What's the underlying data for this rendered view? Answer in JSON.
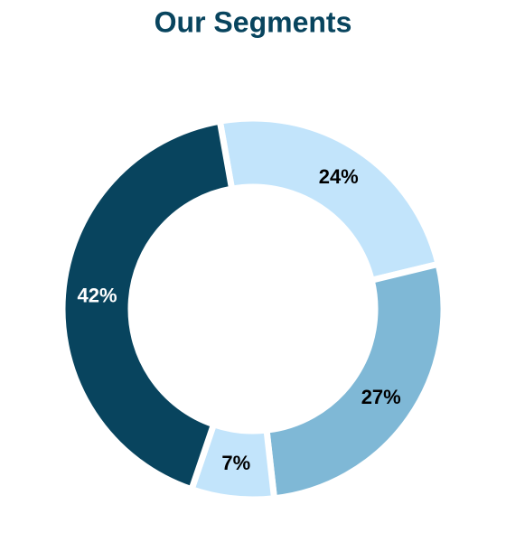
{
  "chart_data": {
    "type": "donut",
    "title": "Our Segments",
    "values": [
      24,
      27,
      7,
      42
    ],
    "value_labels": [
      "24%",
      "27%",
      "7%",
      "42%"
    ],
    "colors": [
      "#c2e4fb",
      "#7fb8d6",
      "#c2e4fb",
      "#08445e"
    ]
  }
}
